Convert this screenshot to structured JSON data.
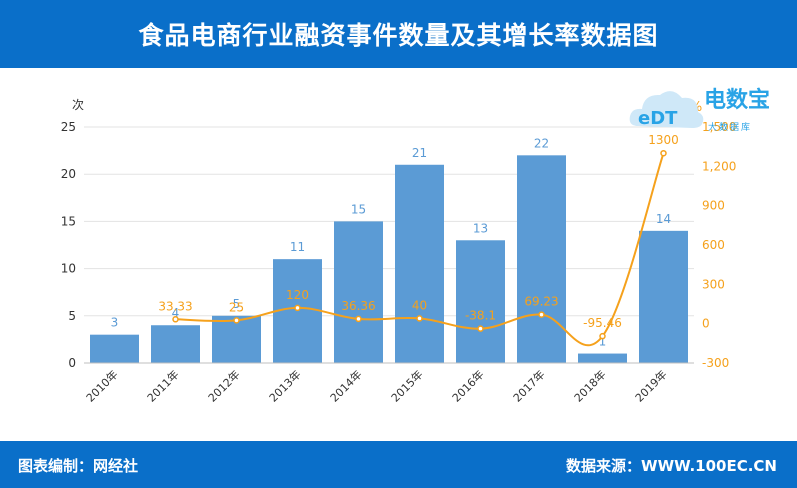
{
  "header": {
    "title": "食品电商行业融资事件数量及其增长率数据图"
  },
  "footer": {
    "left_text": "图表编制：网经社",
    "right_text": "数据来源：WWW.100EC.CN"
  },
  "logo": {
    "brand_text": "电数宝",
    "sub_text": "大数据库",
    "mark_text": "eDT"
  },
  "colors": {
    "header_bg": "#0a6fc9",
    "bar": "#5b9bd5",
    "line": "#f5a11c",
    "bar_label": "#5b9bd5",
    "line_label": "#f5a11c"
  },
  "chart_data": {
    "type": "bar",
    "categories": [
      "2010年",
      "2011年",
      "2012年",
      "2013年",
      "2014年",
      "2015年",
      "2016年",
      "2017年",
      "2018年",
      "2019年"
    ],
    "series": [
      {
        "values": [
          3,
          4,
          5,
          11,
          15,
          21,
          13,
          22,
          1,
          14
        ],
        "axis": "left",
        "type": "bar"
      },
      {
        "values": [
          null,
          33.33,
          25,
          120,
          36.36,
          40,
          -38.1,
          69.23,
          -95.46,
          1300
        ],
        "axis": "right",
        "type": "line",
        "labels": [
          "",
          "33.33",
          "25",
          "120",
          "36.36",
          "40",
          "-38.1",
          "69.23",
          "-95.46",
          "1300"
        ]
      }
    ],
    "y_left": {
      "unit": "次",
      "min": 0,
      "max": 25,
      "ticks": [
        "0",
        "5",
        "10",
        "15",
        "20",
        "25"
      ]
    },
    "y_right": {
      "unit": "%",
      "min": -300,
      "max": 1500,
      "ticks": [
        "-300",
        "0",
        "300",
        "600",
        "900",
        "1,200",
        "1,500"
      ]
    },
    "grid": true,
    "legend": "none"
  }
}
